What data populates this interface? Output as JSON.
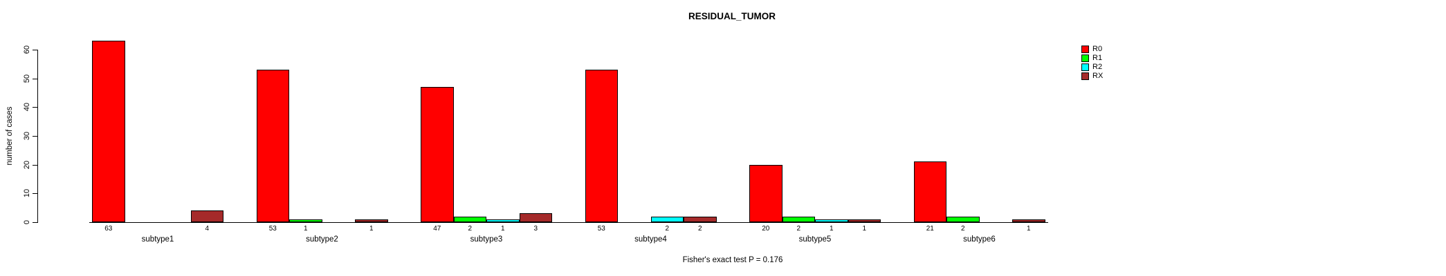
{
  "title": "RESIDUAL_TUMOR",
  "caption": "Fisher's exact test P = 0.176",
  "chart_data": {
    "type": "bar",
    "title": "RESIDUAL_TUMOR",
    "categories": [
      "subtype1",
      "subtype2",
      "subtype3",
      "subtype4",
      "subtype5",
      "subtype6"
    ],
    "series": [
      {
        "name": "R0",
        "color": "#ff0000",
        "values": [
          63,
          53,
          47,
          53,
          20,
          21
        ]
      },
      {
        "name": "R1",
        "color": "#00ff00",
        "values": [
          0,
          1,
          2,
          0,
          2,
          2
        ]
      },
      {
        "name": "R2",
        "color": "#00ffff",
        "values": [
          0,
          0,
          1,
          2,
          1,
          0
        ]
      },
      {
        "name": "RX",
        "color": "#a52a2a",
        "values": [
          4,
          1,
          3,
          2,
          1,
          1
        ]
      }
    ],
    "ylabel": "number of cases",
    "xlabel": "",
    "ylim": [
      0,
      60
    ],
    "yticks": [
      0,
      10,
      20,
      30,
      40,
      50,
      60
    ],
    "bar_value_labels": "shown under each nonzero bar",
    "hide_zero_labels": true,
    "grid": false,
    "legend_position": "right",
    "annotation": "Fisher's exact test P = 0.176"
  },
  "legend": {
    "items": [
      {
        "label": "R0",
        "color": "#ff0000"
      },
      {
        "label": "R1",
        "color": "#00ff00"
      },
      {
        "label": "R2",
        "color": "#00ffff"
      },
      {
        "label": "RX",
        "color": "#a52a2a"
      }
    ]
  }
}
